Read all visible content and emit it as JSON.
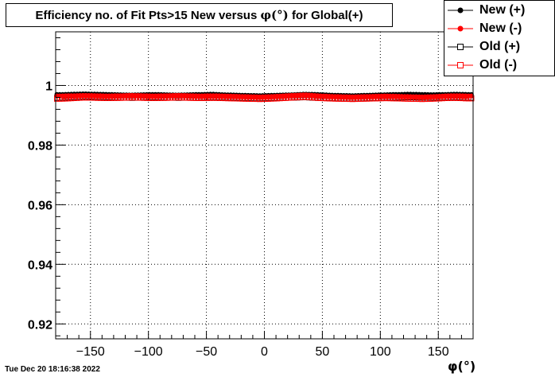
{
  "title": "Efficiency no. of Fit Pts>15 New versus",
  "title_symbol": "φ(°)",
  "title_suffix": "for Global(+)",
  "timestamp": "Tue Dec 20 18:16:38 2022",
  "chart_data": {
    "type": "scatter",
    "title": "Efficiency no. of Fit Pts>15 New versus φ(°) for Global(+)",
    "xlabel": "φ(°)",
    "ylabel": "",
    "xlim": [
      -180,
      180
    ],
    "ylim": [
      0.915,
      1.018
    ],
    "xticks": [
      -150,
      -100,
      -50,
      0,
      50,
      100,
      150
    ],
    "xtick_labels": [
      "−150",
      "−100",
      "−50",
      "0",
      "50",
      "100",
      "150"
    ],
    "yticks": [
      0.92,
      0.94,
      0.96,
      0.98,
      1.0
    ],
    "ytick_labels": [
      "0.92",
      "0.94",
      "0.96",
      "0.98",
      "1"
    ],
    "grid": true,
    "legend_position": "top-right",
    "x": [
      -175,
      -165,
      -155,
      -145,
      -135,
      -125,
      -115,
      -105,
      -95,
      -85,
      -75,
      -65,
      -55,
      -45,
      -35,
      -25,
      -15,
      -5,
      5,
      15,
      25,
      35,
      45,
      55,
      65,
      75,
      85,
      95,
      105,
      115,
      125,
      135,
      145,
      155,
      165,
      175
    ],
    "series": [
      {
        "name": "New (+)",
        "marker": "filled-circle",
        "color": "#000000",
        "values": [
          0.997,
          0.9971,
          0.9972,
          0.9971,
          0.997,
          0.9969,
          0.9968,
          0.9969,
          0.997,
          0.9969,
          0.9968,
          0.9969,
          0.997,
          0.9971,
          0.9969,
          0.9968,
          0.9967,
          0.9966,
          0.9967,
          0.9968,
          0.9969,
          0.9971,
          0.997,
          0.9968,
          0.9967,
          0.9966,
          0.9967,
          0.9968,
          0.9969,
          0.997,
          0.9971,
          0.997,
          0.9969,
          0.997,
          0.9971,
          0.997
        ]
      },
      {
        "name": "New (-)",
        "marker": "filled-circle",
        "color": "#ff0000",
        "values": [
          0.9965,
          0.9966,
          0.9967,
          0.9966,
          0.9965,
          0.9966,
          0.9967,
          0.9966,
          0.9965,
          0.9966,
          0.9967,
          0.9966,
          0.9965,
          0.9966,
          0.9965,
          0.9964,
          0.9963,
          0.9962,
          0.9963,
          0.9965,
          0.9967,
          0.9969,
          0.9966,
          0.9964,
          0.9963,
          0.9962,
          0.9963,
          0.9964,
          0.9965,
          0.9964,
          0.9963,
          0.9962,
          0.9963,
          0.9965,
          0.9966,
          0.9965
        ]
      },
      {
        "name": "Old (+)",
        "marker": "open-square",
        "color": "#000000",
        "values": [
          0.9958,
          0.996,
          0.9962,
          0.9961,
          0.996,
          0.9959,
          0.9958,
          0.9959,
          0.996,
          0.9959,
          0.9958,
          0.9959,
          0.9958,
          0.996,
          0.9959,
          0.9958,
          0.9957,
          0.9956,
          0.9957,
          0.9958,
          0.9959,
          0.996,
          0.9958,
          0.9957,
          0.9956,
          0.9955,
          0.9956,
          0.9957,
          0.9958,
          0.9959,
          0.996,
          0.9959,
          0.9958,
          0.9959,
          0.996,
          0.9958
        ]
      },
      {
        "name": "Old (-)",
        "marker": "open-square",
        "color": "#ff0000",
        "values": [
          0.9955,
          0.9957,
          0.9959,
          0.9958,
          0.9957,
          0.9958,
          0.9959,
          0.9958,
          0.9957,
          0.9958,
          0.9959,
          0.9958,
          0.9957,
          0.9958,
          0.9957,
          0.9956,
          0.9955,
          0.9954,
          0.9955,
          0.9957,
          0.9959,
          0.9961,
          0.9958,
          0.9956,
          0.9955,
          0.9954,
          0.9955,
          0.9956,
          0.9957,
          0.9956,
          0.9955,
          0.9954,
          0.9955,
          0.9957,
          0.9958,
          0.9956
        ]
      }
    ]
  }
}
